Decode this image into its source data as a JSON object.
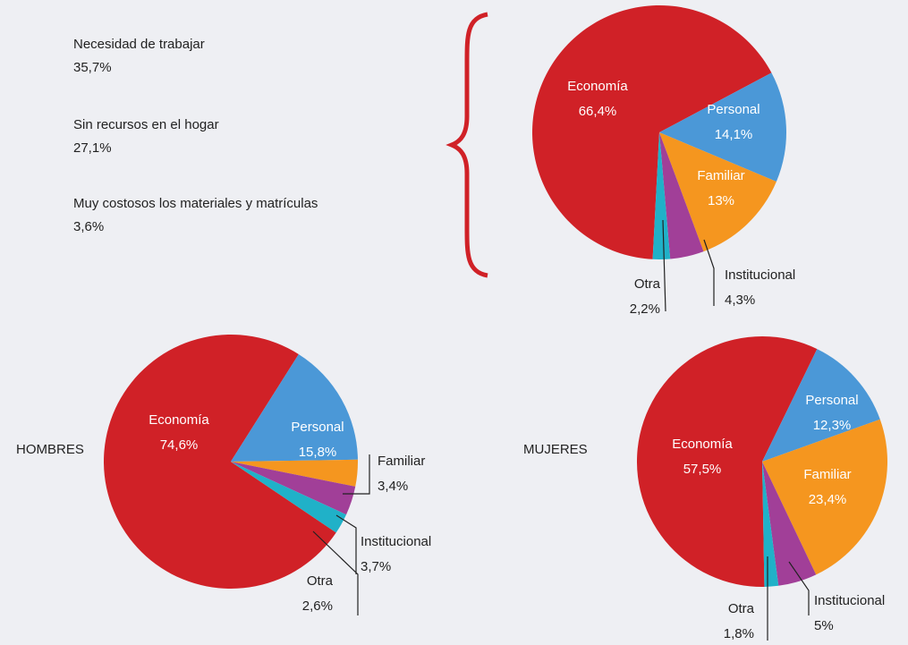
{
  "economy_breakdown": [
    {
      "reason": "Necesidad de trabajar",
      "share": "35,7%"
    },
    {
      "reason": "Sin recursos en el hogar",
      "share": "27,1%"
    },
    {
      "reason": "Muy costosos los materiales y matrículas",
      "share": "3,6%"
    }
  ],
  "chart_data": [
    {
      "type": "pie",
      "categories": [
        "Economía",
        "Personal",
        "Familiar",
        "Institucional",
        "Otra"
      ],
      "values": [
        66.4,
        14.1,
        13,
        4.3,
        2.2
      ],
      "value_labels": [
        "66,4%",
        "14,1%",
        "13%",
        "4,3%",
        "2,2%"
      ],
      "colors": [
        "#d02127",
        "#4b98d7",
        "#f5961f",
        "#a13f98",
        "#20b1c8"
      ]
    },
    {
      "type": "pie",
      "title": "HOMBRES",
      "categories": [
        "Economía",
        "Personal",
        "Familiar",
        "Institucional",
        "Otra"
      ],
      "values": [
        74.6,
        15.8,
        3.4,
        3.7,
        2.6
      ],
      "value_labels": [
        "74,6%",
        "15,8%",
        "3,4%",
        "3,7%",
        "2,6%"
      ],
      "colors": [
        "#d02127",
        "#4b98d7",
        "#f5961f",
        "#a13f98",
        "#20b1c8"
      ]
    },
    {
      "type": "pie",
      "title": "MUJERES",
      "categories": [
        "Economía",
        "Personal",
        "Familiar",
        "Institucional",
        "Otra"
      ],
      "values": [
        57.5,
        12.3,
        23.4,
        5,
        1.8
      ],
      "value_labels": [
        "57,5%",
        "12,3%",
        "23,4%",
        "5%",
        "1,8%"
      ],
      "colors": [
        "#d02127",
        "#4b98d7",
        "#f5961f",
        "#a13f98",
        "#20b1c8"
      ]
    }
  ]
}
